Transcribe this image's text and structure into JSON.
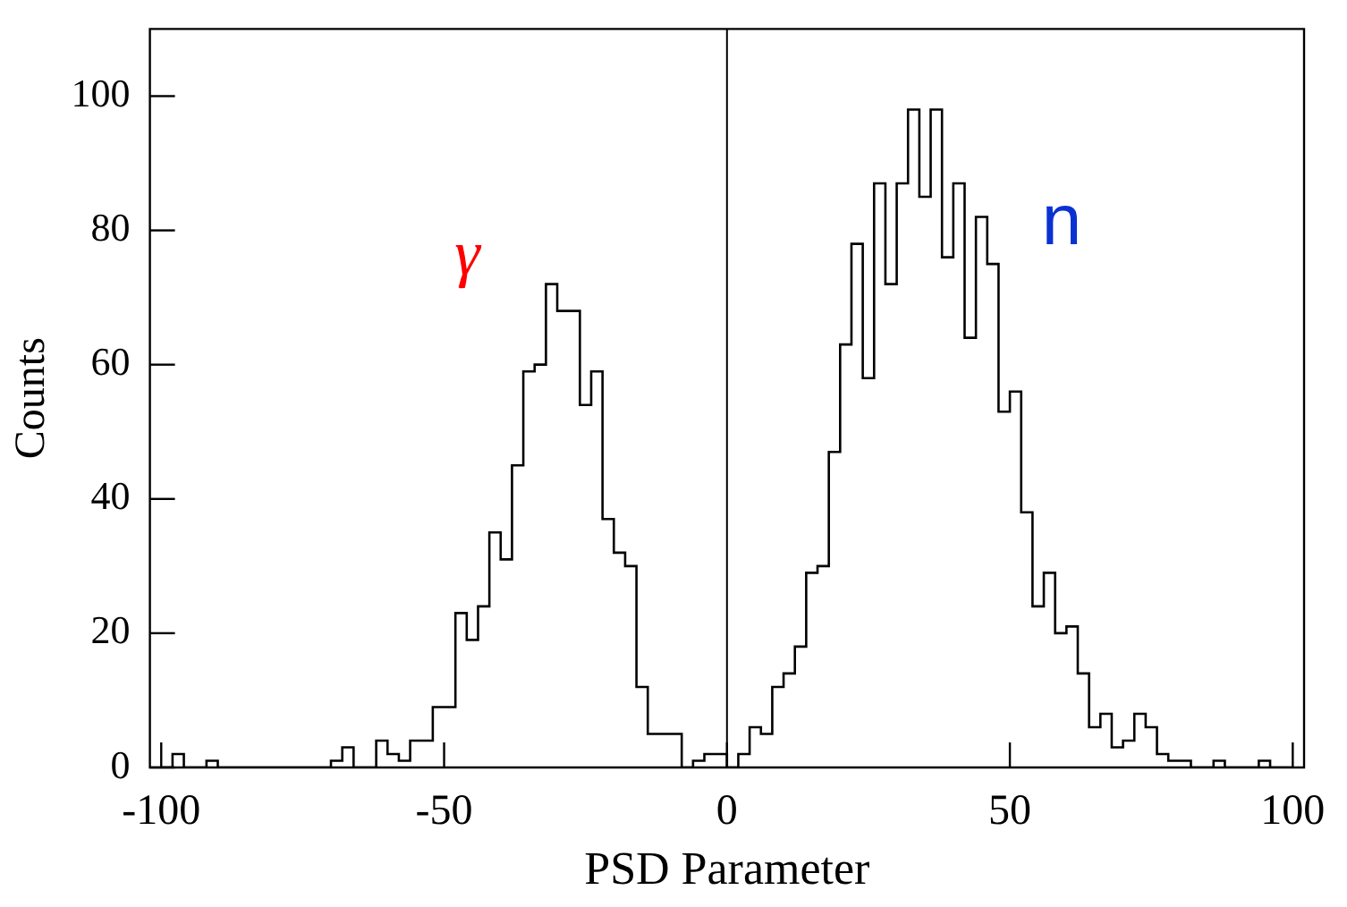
{
  "chart_data": {
    "type": "histogram",
    "xlabel": "PSD Parameter",
    "ylabel": "Counts",
    "bins": [
      -100,
      -98,
      -96,
      -94,
      -92,
      -90,
      -88,
      -86,
      -84,
      -82,
      -80,
      -78,
      -76,
      -74,
      -72,
      -70,
      -68,
      -66,
      -64,
      -62,
      -60,
      -58,
      -56,
      -54,
      -52,
      -50,
      -48,
      -46,
      -44,
      -42,
      -40,
      -38,
      -36,
      -34,
      -32,
      -30,
      -28,
      -26,
      -24,
      -22,
      -20,
      -18,
      -16,
      -14,
      -12,
      -10,
      -8,
      -6,
      -4,
      -2,
      0,
      2,
      4,
      6,
      8,
      10,
      12,
      14,
      16,
      18,
      20,
      22,
      24,
      26,
      28,
      30,
      32,
      34,
      36,
      38,
      40,
      42,
      44,
      46,
      48,
      50,
      52,
      54,
      56,
      58,
      60,
      62,
      64,
      66,
      68,
      70,
      72,
      74,
      76,
      78,
      80,
      82,
      84,
      86,
      88,
      90,
      92,
      94,
      96,
      98,
      100
    ],
    "values": [
      0,
      2,
      0,
      0,
      1,
      0,
      0,
      0,
      0,
      0,
      0,
      0,
      0,
      0,
      0,
      1,
      3,
      0,
      0,
      4,
      2,
      1,
      4,
      4,
      9,
      9,
      23,
      19,
      24,
      35,
      31,
      45,
      59,
      60,
      72,
      68,
      68,
      54,
      59,
      37,
      32,
      30,
      12,
      5,
      5,
      5,
      0,
      1,
      2,
      2,
      0,
      2,
      6,
      5,
      12,
      14,
      18,
      29,
      30,
      47,
      63,
      78,
      58,
      87,
      72,
      87,
      98,
      85,
      98,
      76,
      87,
      64,
      82,
      75,
      53,
      56,
      38,
      24,
      29,
      20,
      21,
      14,
      6,
      8,
      3,
      4,
      8,
      6,
      2,
      1,
      1,
      0,
      0,
      1,
      0,
      0,
      0,
      1,
      0,
      0
    ],
    "color": "#000000",
    "xlim": [
      -102,
      102
    ],
    "xticks": [
      -100,
      -50,
      0,
      50,
      100
    ],
    "ylim": [
      0,
      110
    ],
    "yticks": [
      0,
      20,
      40,
      60,
      80,
      100
    ],
    "ref_lines": [
      {
        "axis": "x",
        "value": 0,
        "color": "#000000"
      }
    ],
    "annotations": [
      "γ",
      "n"
    ]
  }
}
